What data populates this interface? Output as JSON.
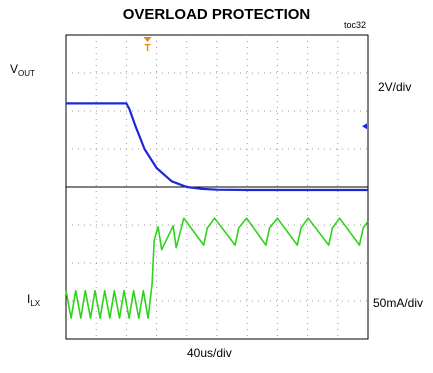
{
  "chart_data": {
    "type": "line",
    "title": "OVERLOAD PROTECTION",
    "figure_id": "toc32",
    "x_scale": "40us/div",
    "grid": true,
    "divisions": {
      "x": 10,
      "y": 8
    },
    "series": [
      {
        "name": "VOUT",
        "scale": "2V/div",
        "color": "#1f28d8",
        "x_div": [
          0,
          2.0,
          2.1,
          2.3,
          2.6,
          3.0,
          3.5,
          4.0,
          4.5,
          5.0,
          6.0,
          7.0,
          8.0,
          9.0,
          10.0
        ],
        "y_div": [
          6.2,
          6.2,
          6.05,
          5.6,
          5.0,
          4.5,
          4.15,
          4.0,
          3.95,
          3.93,
          3.92,
          3.92,
          3.92,
          3.92,
          3.92
        ]
      },
      {
        "name": "ILX",
        "scale": "50mA/div",
        "color": "#2ed41a",
        "x_div": [
          0.0,
          0.17,
          0.32,
          0.49,
          0.64,
          0.81,
          0.96,
          1.13,
          1.28,
          1.45,
          1.6,
          1.77,
          1.92,
          2.09,
          2.24,
          2.41,
          2.56,
          2.72,
          2.85,
          2.92,
          3.05,
          3.17,
          3.55,
          3.65,
          3.9,
          4.56,
          4.68,
          4.92,
          5.6,
          5.72,
          5.98,
          6.62,
          6.74,
          7.0,
          7.66,
          7.78,
          8.02,
          8.7,
          8.82,
          9.06,
          9.72,
          9.84,
          10.0
        ],
        "y_div": [
          1.27,
          0.55,
          1.27,
          0.55,
          1.27,
          0.55,
          1.27,
          0.55,
          1.27,
          0.55,
          1.27,
          0.55,
          1.27,
          0.55,
          1.27,
          0.55,
          1.27,
          0.55,
          1.45,
          2.6,
          2.95,
          2.35,
          2.98,
          2.4,
          3.18,
          2.47,
          2.92,
          3.18,
          2.47,
          2.92,
          3.18,
          2.47,
          2.92,
          3.18,
          2.47,
          2.92,
          3.18,
          2.47,
          2.92,
          3.18,
          2.47,
          2.92,
          3.1
        ]
      }
    ],
    "markers": {
      "trigger": "T",
      "trigger_color": "#e8851c"
    }
  }
}
